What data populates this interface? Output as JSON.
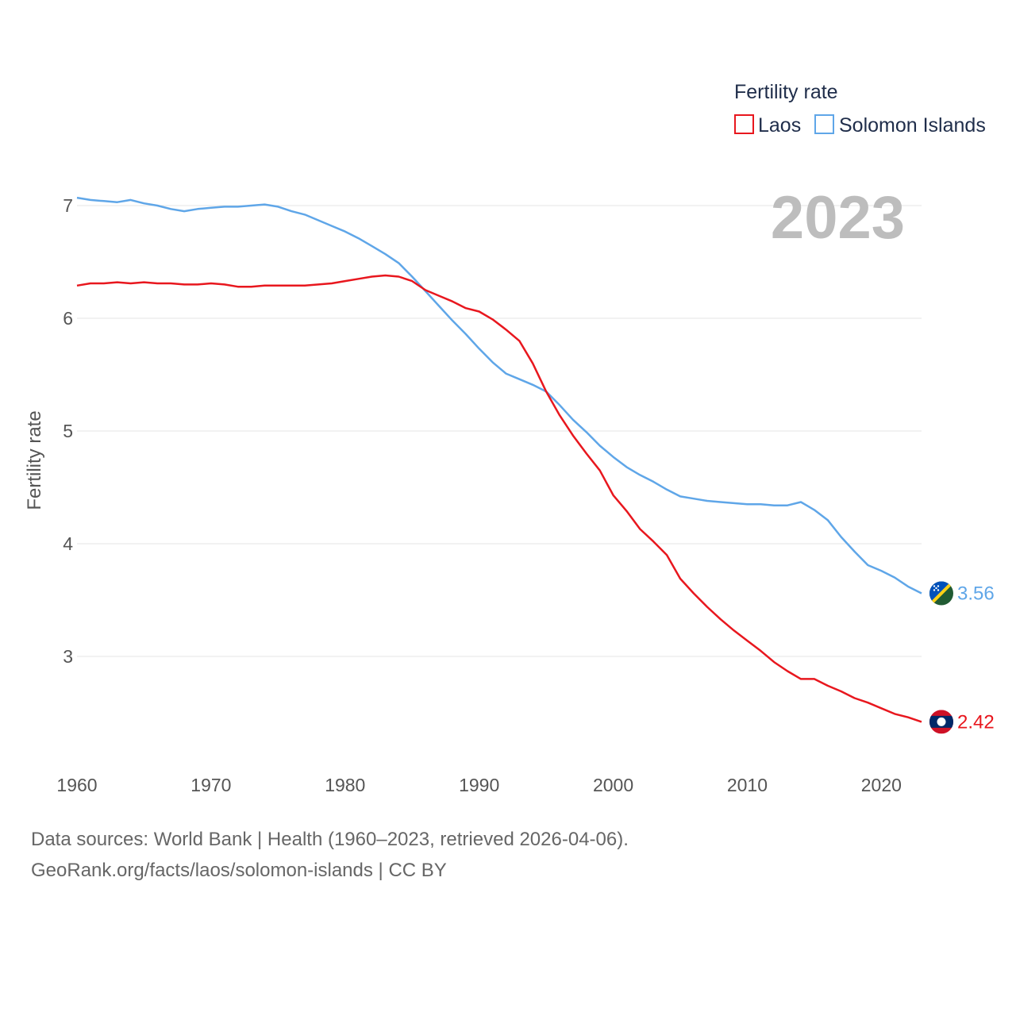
{
  "chart_data": {
    "type": "line",
    "legend_title": "Fertility rate",
    "ylabel": "Fertility rate",
    "year_label": "2023",
    "xlim": [
      1960,
      2023
    ],
    "ylim": [
      2.1,
      7.1
    ],
    "x_ticks": [
      1960,
      1970,
      1980,
      1990,
      2000,
      2010,
      2020
    ],
    "y_ticks": [
      3,
      4,
      5,
      6,
      7
    ],
    "legend_position": "top-right",
    "series": [
      {
        "name": "Laos",
        "color": "#e8171e",
        "end_label": "2.42",
        "flag_icon": "laos-flag-icon",
        "x": [
          1960,
          1961,
          1962,
          1963,
          1964,
          1965,
          1966,
          1967,
          1968,
          1969,
          1970,
          1971,
          1972,
          1973,
          1974,
          1975,
          1976,
          1977,
          1978,
          1979,
          1980,
          1981,
          1982,
          1983,
          1984,
          1985,
          1986,
          1987,
          1988,
          1989,
          1990,
          1991,
          1992,
          1993,
          1994,
          1995,
          1996,
          1997,
          1998,
          1999,
          2000,
          2001,
          2002,
          2003,
          2004,
          2005,
          2006,
          2007,
          2008,
          2009,
          2010,
          2011,
          2012,
          2013,
          2014,
          2015,
          2016,
          2017,
          2018,
          2019,
          2020,
          2021,
          2022,
          2023
        ],
        "values": [
          6.29,
          6.31,
          6.31,
          6.32,
          6.31,
          6.32,
          6.31,
          6.31,
          6.3,
          6.3,
          6.31,
          6.3,
          6.28,
          6.28,
          6.29,
          6.29,
          6.29,
          6.29,
          6.3,
          6.31,
          6.33,
          6.35,
          6.37,
          6.38,
          6.37,
          6.33,
          6.25,
          6.2,
          6.15,
          6.09,
          6.06,
          5.99,
          5.9,
          5.8,
          5.6,
          5.35,
          5.14,
          4.96,
          4.8,
          4.65,
          4.43,
          4.29,
          4.13,
          4.02,
          3.9,
          3.69,
          3.56,
          3.44,
          3.33,
          3.23,
          3.14,
          3.05,
          2.95,
          2.87,
          2.8,
          2.8,
          2.74,
          2.69,
          2.63,
          2.59,
          2.54,
          2.49,
          2.46,
          2.42
        ]
      },
      {
        "name": "Solomon Islands",
        "color": "#5fa6e8",
        "end_label": "3.56",
        "flag_icon": "solomon-islands-flag-icon",
        "x": [
          1960,
          1961,
          1962,
          1963,
          1964,
          1965,
          1966,
          1967,
          1968,
          1969,
          1970,
          1971,
          1972,
          1973,
          1974,
          1975,
          1976,
          1977,
          1978,
          1979,
          1980,
          1981,
          1982,
          1983,
          1984,
          1985,
          1986,
          1987,
          1988,
          1989,
          1990,
          1991,
          1992,
          1993,
          1994,
          1995,
          1996,
          1997,
          1998,
          1999,
          2000,
          2001,
          2002,
          2003,
          2004,
          2005,
          2006,
          2007,
          2008,
          2009,
          2010,
          2011,
          2012,
          2013,
          2014,
          2015,
          2016,
          2017,
          2018,
          2019,
          2020,
          2021,
          2022,
          2023
        ],
        "values": [
          7.07,
          7.05,
          7.04,
          7.03,
          7.05,
          7.02,
          7.0,
          6.97,
          6.95,
          6.97,
          6.98,
          6.99,
          6.99,
          7.0,
          7.01,
          6.99,
          6.95,
          6.92,
          6.87,
          6.82,
          6.77,
          6.71,
          6.64,
          6.57,
          6.49,
          6.37,
          6.24,
          6.11,
          5.98,
          5.86,
          5.73,
          5.61,
          5.51,
          5.46,
          5.41,
          5.35,
          5.23,
          5.1,
          4.99,
          4.87,
          4.77,
          4.68,
          4.61,
          4.55,
          4.48,
          4.42,
          4.4,
          4.38,
          4.37,
          4.36,
          4.35,
          4.35,
          4.34,
          4.34,
          4.37,
          4.3,
          4.21,
          4.06,
          3.93,
          3.81,
          3.76,
          3.7,
          3.62,
          3.56
        ]
      }
    ]
  },
  "source": {
    "line1": "Data sources: World Bank | Health (1960–2023, retrieved 2026-04-06).",
    "line2": "GeoRank.org/facts/laos/solomon-islands | CC BY"
  }
}
